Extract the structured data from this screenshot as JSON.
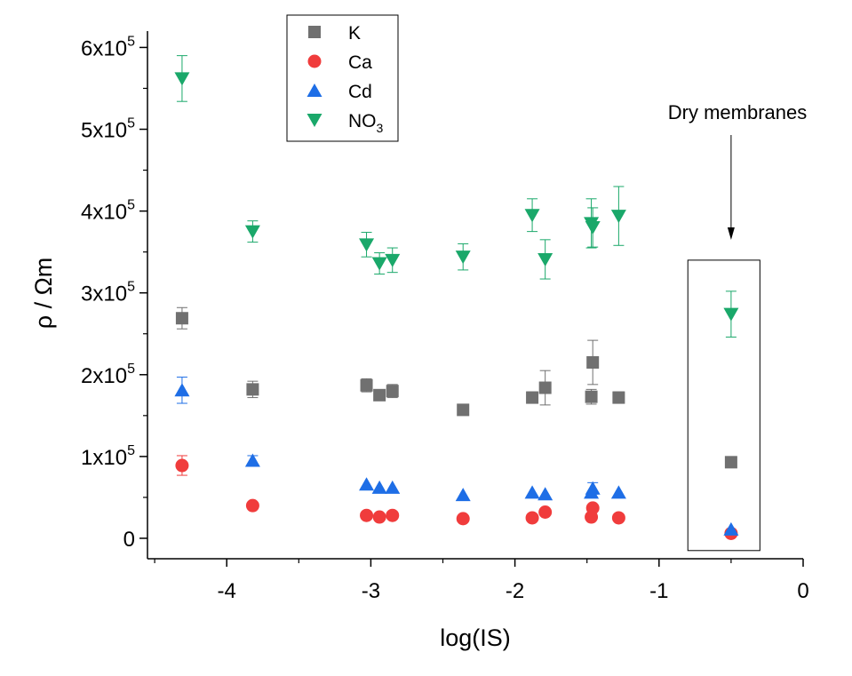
{
  "chart_data": {
    "type": "scatter",
    "xlabel": "log(IS)",
    "ylabel": "ρ  / Ωm",
    "xlim": [
      -4.55,
      0
    ],
    "ylim": [
      -25000,
      620000
    ],
    "grid": false,
    "legend_position": "top-left",
    "x_ticks": [
      {
        "value": -4,
        "label": "-4"
      },
      {
        "value": -3,
        "label": "-3"
      },
      {
        "value": -2,
        "label": "-2"
      },
      {
        "value": -1,
        "label": "-1"
      },
      {
        "value": 0,
        "label": "0"
      }
    ],
    "y_ticks": [
      {
        "value": 0,
        "base": "0",
        "exp": ""
      },
      {
        "value": 100000,
        "base": "1x10",
        "exp": "5"
      },
      {
        "value": 200000,
        "base": "2x10",
        "exp": "5"
      },
      {
        "value": 300000,
        "base": "3x10",
        "exp": "5"
      },
      {
        "value": 400000,
        "base": "4x10",
        "exp": "5"
      },
      {
        "value": 500000,
        "base": "5x10",
        "exp": "5"
      },
      {
        "value": 600000,
        "base": "6x10",
        "exp": "5"
      }
    ],
    "series": [
      {
        "name": "K",
        "marker": "square",
        "color": "#707070",
        "points": [
          {
            "x": -4.31,
            "y": 269000,
            "err": 13000
          },
          {
            "x": -3.82,
            "y": 182000,
            "err": 10000
          },
          {
            "x": -3.03,
            "y": 187000,
            "err": 8000
          },
          {
            "x": -2.94,
            "y": 175000,
            "err": 6000
          },
          {
            "x": -2.85,
            "y": 180000,
            "err": 8000
          },
          {
            "x": -2.36,
            "y": 157000,
            "err": 5000
          },
          {
            "x": -1.88,
            "y": 172000,
            "err": 7000
          },
          {
            "x": -1.79,
            "y": 184000,
            "err": 21000
          },
          {
            "x": -1.47,
            "y": 173000,
            "err": 9000
          },
          {
            "x": -1.46,
            "y": 215000,
            "err": 27000
          },
          {
            "x": -1.28,
            "y": 172000,
            "err": 7000
          },
          {
            "x": -0.5,
            "y": 93000,
            "err": 0
          }
        ]
      },
      {
        "name": "Ca",
        "marker": "circle",
        "color": "#f03c3c",
        "points": [
          {
            "x": -4.31,
            "y": 89000,
            "err": 12000
          },
          {
            "x": -3.82,
            "y": 40000,
            "err": 0
          },
          {
            "x": -3.03,
            "y": 28000,
            "err": 0
          },
          {
            "x": -2.94,
            "y": 26000,
            "err": 0
          },
          {
            "x": -2.85,
            "y": 28000,
            "err": 0
          },
          {
            "x": -2.36,
            "y": 24000,
            "err": 0
          },
          {
            "x": -1.88,
            "y": 25000,
            "err": 0
          },
          {
            "x": -1.79,
            "y": 32000,
            "err": 0
          },
          {
            "x": -1.47,
            "y": 26000,
            "err": 0
          },
          {
            "x": -1.46,
            "y": 37000,
            "err": 0
          },
          {
            "x": -1.28,
            "y": 25000,
            "err": 0
          },
          {
            "x": -0.5,
            "y": 6000,
            "err": 0
          }
        ]
      },
      {
        "name": "Cd",
        "marker": "triangle-up",
        "color": "#1e6ee6",
        "points": [
          {
            "x": -4.31,
            "y": 181000,
            "err": 16000
          },
          {
            "x": -3.82,
            "y": 95000,
            "err": 6000
          },
          {
            "x": -3.03,
            "y": 66000,
            "err": 0
          },
          {
            "x": -2.94,
            "y": 62000,
            "err": 0
          },
          {
            "x": -2.85,
            "y": 62000,
            "err": 0
          },
          {
            "x": -2.36,
            "y": 53000,
            "err": 0
          },
          {
            "x": -1.88,
            "y": 56000,
            "err": 0
          },
          {
            "x": -1.79,
            "y": 54000,
            "err": 0
          },
          {
            "x": -1.47,
            "y": 56000,
            "err": 0
          },
          {
            "x": -1.46,
            "y": 61000,
            "err": 7000
          },
          {
            "x": -1.28,
            "y": 56000,
            "err": 0
          },
          {
            "x": -0.5,
            "y": 11000,
            "err": 0
          }
        ]
      },
      {
        "name": "NO3",
        "name_base": "NO",
        "name_sub": "3",
        "marker": "triangle-down",
        "color": "#1aa86a",
        "points": [
          {
            "x": -4.31,
            "y": 562000,
            "err": 28000
          },
          {
            "x": -3.82,
            "y": 375000,
            "err": 13000
          },
          {
            "x": -3.03,
            "y": 359000,
            "err": 15000
          },
          {
            "x": -2.94,
            "y": 336000,
            "err": 13000
          },
          {
            "x": -2.85,
            "y": 340000,
            "err": 15000
          },
          {
            "x": -2.36,
            "y": 344000,
            "err": 16000
          },
          {
            "x": -1.88,
            "y": 395000,
            "err": 20000
          },
          {
            "x": -1.79,
            "y": 341000,
            "err": 24000
          },
          {
            "x": -1.47,
            "y": 385000,
            "err": 30000
          },
          {
            "x": -1.46,
            "y": 380000,
            "err": 24000
          },
          {
            "x": -1.28,
            "y": 394000,
            "err": 36000
          },
          {
            "x": -0.5,
            "y": 274000,
            "err": 28000
          }
        ]
      }
    ],
    "annotations": [
      {
        "text": "Dry membranes",
        "target_x": -0.5,
        "box_x": [
          -0.8,
          -0.3
        ],
        "box_y": [
          -15000,
          340000
        ]
      }
    ]
  },
  "legend": {
    "items": [
      {
        "label": "K",
        "label_base": "K",
        "label_sub": ""
      },
      {
        "label": "Ca",
        "label_base": "Ca",
        "label_sub": ""
      },
      {
        "label": "Cd",
        "label_base": "Cd",
        "label_sub": ""
      },
      {
        "label": "NO3",
        "label_base": "NO",
        "label_sub": "3"
      }
    ]
  }
}
